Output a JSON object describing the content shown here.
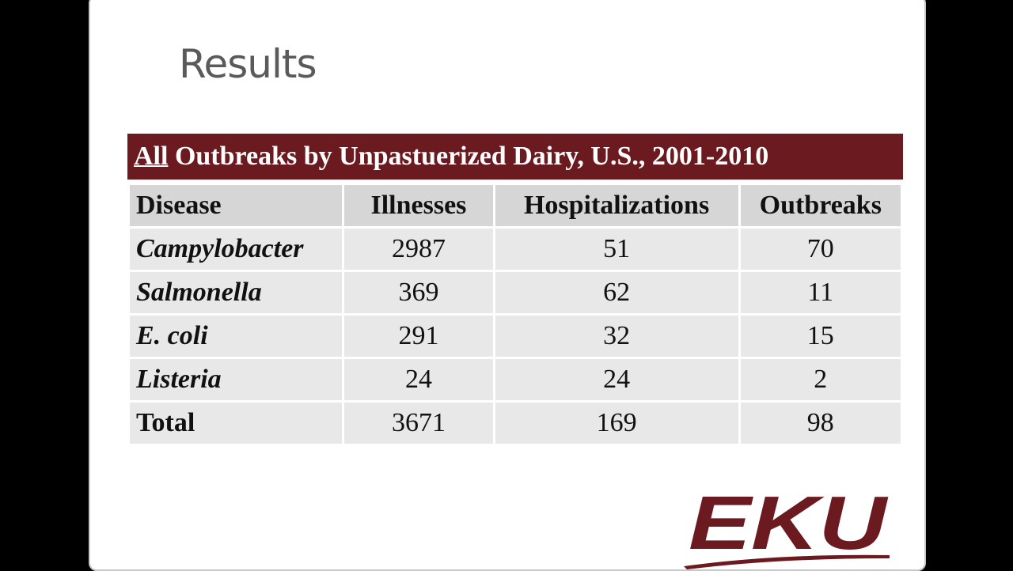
{
  "slide": {
    "title": "Results",
    "logo": "EKU"
  },
  "table": {
    "caption_emphasis": "All",
    "caption_rest": "Outbreaks by Unpastuerized Dairy, U.S., 2001-2010",
    "header": [
      "Disease",
      "Illnesses",
      "Hospitalizations",
      "Outbreaks"
    ],
    "rows": [
      [
        "Campylobacter",
        2987,
        51,
        70
      ],
      [
        "Salmonella",
        369,
        62,
        11
      ],
      [
        "E. coli",
        291,
        32,
        15
      ],
      [
        "Listeria",
        24,
        24,
        2
      ],
      [
        "Total",
        3671,
        169,
        98
      ]
    ]
  }
}
